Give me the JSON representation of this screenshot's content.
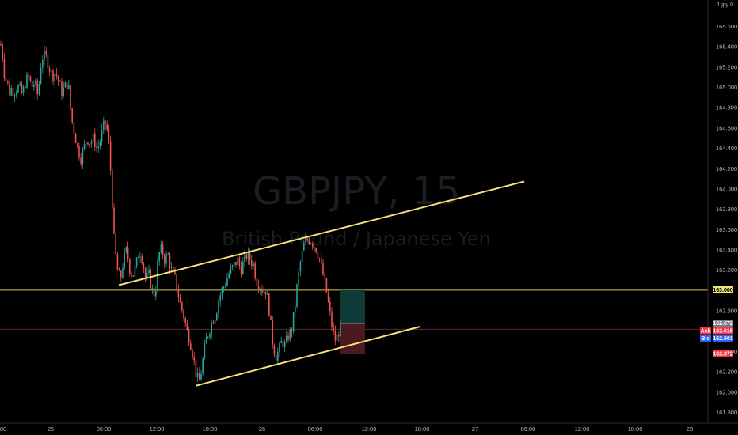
{
  "corner_label": "1 jpy 0",
  "chart_data": {
    "type": "candlestick",
    "symbol": "GBPJPY, 15",
    "description": "British Pound / Japanese Yen",
    "ylim": [
      161.72,
      166.0
    ],
    "y_ticks": [
      "165.600",
      "165.400",
      "165.200",
      "165.000",
      "164.800",
      "164.600",
      "164.400",
      "164.200",
      "164.000",
      "163.800",
      "163.600",
      "163.400",
      "163.200",
      "162.800",
      "162.400",
      "162.200",
      "162.000",
      "161.800"
    ],
    "x_ticks": [
      "00",
      "25",
      "06:00",
      "12:00",
      "18:00",
      "26",
      "06:00",
      "12:00",
      "18:00",
      "27",
      "06:00",
      "12:00",
      "18:00",
      "28"
    ],
    "close_path": [
      [
        0,
        165.42
      ],
      [
        2,
        165.4
      ],
      [
        6,
        165.1
      ],
      [
        9,
        165.05
      ],
      [
        12,
        164.95
      ],
      [
        15,
        165.0
      ],
      [
        17,
        164.95
      ],
      [
        20,
        164.98
      ],
      [
        24,
        165.0
      ],
      [
        28,
        164.92
      ],
      [
        32,
        165.05
      ],
      [
        36,
        165.1
      ],
      [
        40,
        165.0
      ],
      [
        44,
        165.05
      ],
      [
        48,
        164.9
      ],
      [
        51,
        165.2
      ],
      [
        54,
        165.3
      ],
      [
        58,
        165.3
      ],
      [
        62,
        165.2
      ],
      [
        66,
        165.1
      ],
      [
        70,
        165.15
      ],
      [
        74,
        165.05
      ],
      [
        78,
        164.95
      ],
      [
        82,
        165.0
      ],
      [
        86,
        165.05
      ],
      [
        90,
        164.7
      ],
      [
        94,
        164.55
      ],
      [
        98,
        164.4
      ],
      [
        102,
        164.3
      ],
      [
        106,
        164.4
      ],
      [
        110,
        164.5
      ],
      [
        114,
        164.45
      ],
      [
        118,
        164.5
      ],
      [
        122,
        164.4
      ],
      [
        126,
        164.45
      ],
      [
        130,
        164.6
      ],
      [
        134,
        164.65
      ],
      [
        138,
        164.4
      ],
      [
        141,
        164.0
      ],
      [
        144,
        163.5
      ],
      [
        148,
        163.2
      ],
      [
        152,
        163.1
      ],
      [
        156,
        163.3
      ],
      [
        160,
        163.4
      ],
      [
        164,
        163.2
      ],
      [
        168,
        163.15
      ],
      [
        172,
        163.25
      ],
      [
        176,
        163.4
      ],
      [
        180,
        163.3
      ],
      [
        184,
        163.1
      ],
      [
        188,
        163.15
      ],
      [
        192,
        163.0
      ],
      [
        196,
        162.95
      ],
      [
        200,
        163.35
      ],
      [
        204,
        163.4
      ],
      [
        208,
        163.3
      ],
      [
        212,
        163.35
      ],
      [
        216,
        163.2
      ],
      [
        220,
        163.15
      ],
      [
        224,
        163.0
      ],
      [
        228,
        162.85
      ],
      [
        232,
        162.75
      ],
      [
        236,
        162.6
      ],
      [
        240,
        162.5
      ],
      [
        244,
        162.35
      ],
      [
        248,
        162.15
      ],
      [
        252,
        162.1
      ],
      [
        256,
        162.3
      ],
      [
        260,
        162.5
      ],
      [
        264,
        162.6
      ],
      [
        268,
        162.7
      ],
      [
        272,
        162.75
      ],
      [
        276,
        162.9
      ],
      [
        280,
        163.0
      ],
      [
        284,
        163.05
      ],
      [
        288,
        163.15
      ],
      [
        292,
        163.2
      ],
      [
        296,
        163.25
      ],
      [
        300,
        163.3
      ],
      [
        304,
        163.2
      ],
      [
        308,
        163.28
      ],
      [
        312,
        163.35
      ],
      [
        316,
        163.3
      ],
      [
        320,
        163.25
      ],
      [
        324,
        163.1
      ],
      [
        328,
        163.05
      ],
      [
        332,
        163.0
      ],
      [
        336,
        163.0
      ],
      [
        340,
        162.8
      ],
      [
        344,
        162.5
      ],
      [
        348,
        162.35
      ],
      [
        352,
        162.4
      ],
      [
        356,
        162.5
      ],
      [
        360,
        162.45
      ],
      [
        364,
        162.55
      ],
      [
        368,
        162.6
      ],
      [
        372,
        162.8
      ],
      [
        376,
        163.1
      ],
      [
        380,
        163.3
      ],
      [
        384,
        163.45
      ],
      [
        388,
        163.5
      ],
      [
        392,
        163.5
      ],
      [
        396,
        163.45
      ],
      [
        400,
        163.4
      ],
      [
        404,
        163.3
      ],
      [
        408,
        163.15
      ],
      [
        412,
        163.0
      ],
      [
        416,
        162.8
      ],
      [
        420,
        162.6
      ],
      [
        424,
        162.5
      ],
      [
        428,
        162.6
      ],
      [
        432,
        162.65
      ]
    ],
    "trend_lines": [
      {
        "from": [
          150,
          163.05
        ],
        "to": [
          662,
          164.07
        ],
        "color": "#f5e27a"
      },
      {
        "from": [
          248,
          162.06
        ],
        "to": [
          530,
          162.64
        ],
        "color": "#f5e27a"
      }
    ],
    "horizontal_line": {
      "price": 163.0,
      "color": "#d8c65a"
    },
    "current_line": {
      "price": 162.615,
      "color": "#5a2a3a"
    },
    "position": {
      "entry": 162.672,
      "target": 163.0,
      "stop": 162.372,
      "x_start": 430,
      "x_end": 461
    },
    "price_badges": [
      {
        "label": "",
        "value": "163.000",
        "bg": "#f2e46e",
        "fg": "#000000",
        "price": 163.0
      },
      {
        "label": "",
        "value": "162.672",
        "bg": "#787b86",
        "fg": "#ffffff",
        "price": 162.672
      },
      {
        "label": "Ask",
        "value": "162.615",
        "bg": "#f23645",
        "fg": "#ffffff",
        "price": 162.615
      },
      {
        "label": "Bid",
        "value": "162.601",
        "bg": "#2962ff",
        "fg": "#ffffff",
        "price": 162.601
      },
      {
        "label": "",
        "value": "162.372",
        "bg": "#f23645",
        "fg": "#ffffff",
        "price": 162.372
      }
    ],
    "up_color": "#26a69a",
    "down_color": "#ef5350"
  }
}
